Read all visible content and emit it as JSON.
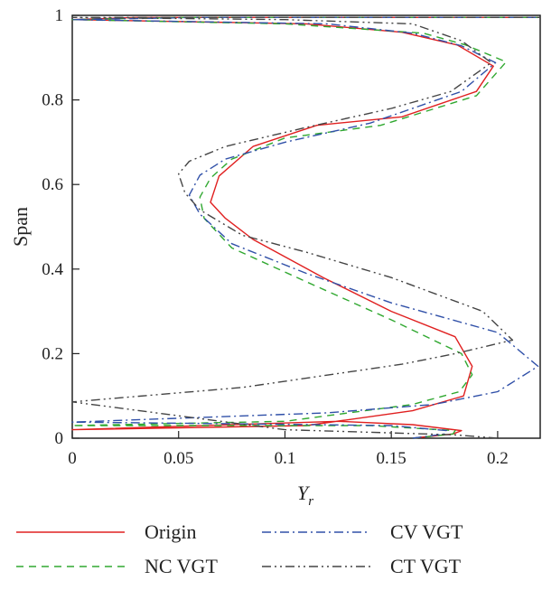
{
  "chart_data": {
    "type": "line",
    "xlabel": "Y",
    "xlabel_sub": "r",
    "ylabel": "Span",
    "xlim": [
      0,
      0.22
    ],
    "ylim": [
      0,
      1
    ],
    "xticks": [
      "0",
      "0.05",
      "0.1",
      "0.15",
      "0.2"
    ],
    "yticks": [
      "0",
      "0.2",
      "0.4",
      "0.6",
      "0.8",
      "1"
    ],
    "grid": false,
    "legend_position": "bottom",
    "series": [
      {
        "name": "Origin",
        "color": "#e02020",
        "dash": "solid",
        "points": [
          [
            0.16,
            0.0
          ],
          [
            0.179,
            0.01
          ],
          [
            0.183,
            0.018
          ],
          [
            0.16,
            0.032
          ],
          [
            0.125,
            0.04
          ],
          [
            0.0,
            0.02
          ],
          [
            0.11,
            0.03
          ],
          [
            0.16,
            0.065
          ],
          [
            0.184,
            0.1
          ],
          [
            0.188,
            0.17
          ],
          [
            0.18,
            0.24
          ],
          [
            0.15,
            0.3
          ],
          [
            0.118,
            0.38
          ],
          [
            0.085,
            0.47
          ],
          [
            0.072,
            0.52
          ],
          [
            0.065,
            0.558
          ],
          [
            0.069,
            0.62
          ],
          [
            0.085,
            0.69
          ],
          [
            0.115,
            0.74
          ],
          [
            0.155,
            0.76
          ],
          [
            0.19,
            0.82
          ],
          [
            0.198,
            0.88
          ],
          [
            0.181,
            0.93
          ],
          [
            0.155,
            0.96
          ],
          [
            0.11,
            0.98
          ],
          [
            0.0,
            0.99
          ],
          [
            0.03,
            0.995
          ],
          [
            0.22,
            0.995
          ]
        ]
      },
      {
        "name": "NC VGT",
        "color": "#30a830",
        "dash": "8,6",
        "points": [
          [
            0.16,
            0.0
          ],
          [
            0.179,
            0.01
          ],
          [
            0.18,
            0.018
          ],
          [
            0.14,
            0.03
          ],
          [
            0.08,
            0.03
          ],
          [
            0.0,
            0.03
          ],
          [
            0.1,
            0.04
          ],
          [
            0.16,
            0.08
          ],
          [
            0.182,
            0.11
          ],
          [
            0.188,
            0.15
          ],
          [
            0.183,
            0.2
          ],
          [
            0.15,
            0.28
          ],
          [
            0.11,
            0.37
          ],
          [
            0.075,
            0.45
          ],
          [
            0.062,
            0.52
          ],
          [
            0.06,
            0.57
          ],
          [
            0.065,
            0.615
          ],
          [
            0.075,
            0.66
          ],
          [
            0.1,
            0.71
          ],
          [
            0.145,
            0.74
          ],
          [
            0.19,
            0.81
          ],
          [
            0.204,
            0.89
          ],
          [
            0.185,
            0.93
          ],
          [
            0.165,
            0.958
          ],
          [
            0.1,
            0.98
          ],
          [
            0.0,
            0.99
          ],
          [
            0.05,
            0.995
          ],
          [
            0.22,
            0.995
          ]
        ]
      },
      {
        "name": "CV VGT",
        "color": "#3050a8",
        "dash": "10,4,2,4",
        "points": [
          [
            0.16,
            0.0
          ],
          [
            0.175,
            0.01
          ],
          [
            0.176,
            0.018
          ],
          [
            0.15,
            0.03
          ],
          [
            0.1,
            0.033
          ],
          [
            0.0,
            0.038
          ],
          [
            0.12,
            0.06
          ],
          [
            0.17,
            0.08
          ],
          [
            0.2,
            0.11
          ],
          [
            0.219,
            0.17
          ],
          [
            0.2,
            0.25
          ],
          [
            0.15,
            0.32
          ],
          [
            0.11,
            0.39
          ],
          [
            0.075,
            0.46
          ],
          [
            0.06,
            0.53
          ],
          [
            0.055,
            0.575
          ],
          [
            0.06,
            0.622
          ],
          [
            0.072,
            0.66
          ],
          [
            0.1,
            0.7
          ],
          [
            0.14,
            0.745
          ],
          [
            0.183,
            0.82
          ],
          [
            0.199,
            0.888
          ],
          [
            0.183,
            0.928
          ],
          [
            0.16,
            0.958
          ],
          [
            0.12,
            0.98
          ],
          [
            0.0,
            0.99
          ],
          [
            0.06,
            0.995
          ],
          [
            0.22,
            0.995
          ]
        ]
      },
      {
        "name": "CT VGT",
        "color": "#444444",
        "dash": "10,4,2,4,2,4",
        "points": [
          [
            0.2,
            0.0
          ],
          [
            0.18,
            0.008
          ],
          [
            0.14,
            0.014
          ],
          [
            0.1,
            0.02
          ],
          [
            0.0,
            0.086
          ],
          [
            0.08,
            0.12
          ],
          [
            0.155,
            0.175
          ],
          [
            0.18,
            0.2
          ],
          [
            0.207,
            0.232
          ],
          [
            0.193,
            0.3
          ],
          [
            0.15,
            0.38
          ],
          [
            0.11,
            0.44
          ],
          [
            0.08,
            0.48
          ],
          [
            0.06,
            0.54
          ],
          [
            0.053,
            0.58
          ],
          [
            0.05,
            0.625
          ],
          [
            0.055,
            0.655
          ],
          [
            0.072,
            0.69
          ],
          [
            0.11,
            0.735
          ],
          [
            0.15,
            0.78
          ],
          [
            0.178,
            0.82
          ],
          [
            0.197,
            0.888
          ],
          [
            0.183,
            0.94
          ],
          [
            0.16,
            0.98
          ],
          [
            0.1,
            0.99
          ],
          [
            0.0,
            0.995
          ],
          [
            0.22,
            0.995
          ]
        ]
      }
    ]
  }
}
